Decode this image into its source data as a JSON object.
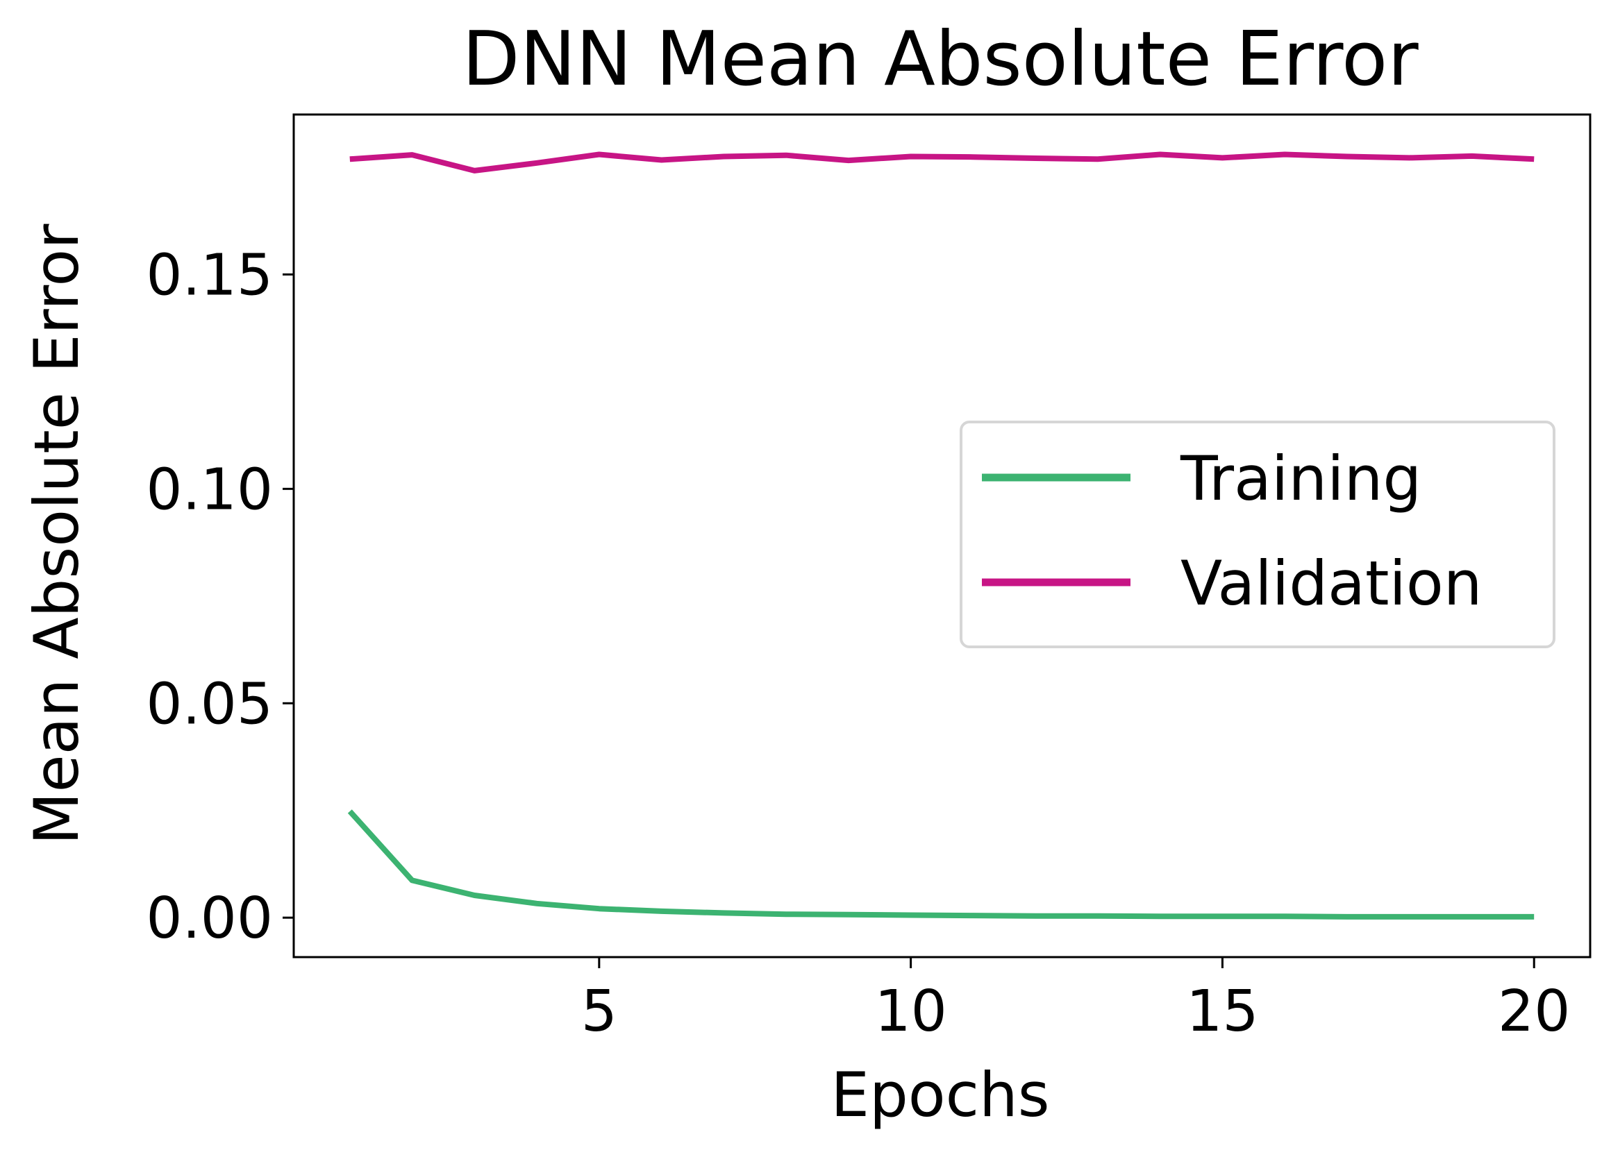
{
  "chart_data": {
    "type": "line",
    "title": "DNN Mean Absolute Error",
    "xlabel": "Epochs",
    "ylabel": "Mean Absolute Error",
    "xlim": [
      0.1,
      20.9
    ],
    "ylim": [
      -0.0092,
      0.1873
    ],
    "xticks": [
      5,
      10,
      15,
      20
    ],
    "xtick_labels": [
      "5",
      "10",
      "15",
      "20"
    ],
    "yticks": [
      0.0,
      0.05,
      0.1,
      0.15
    ],
    "ytick_labels": [
      "0.00",
      "0.05",
      "0.10",
      "0.15"
    ],
    "grid": false,
    "legend_position": "center-right",
    "x": [
      1,
      2,
      3,
      4,
      5,
      6,
      7,
      8,
      9,
      10,
      11,
      12,
      13,
      14,
      15,
      16,
      17,
      18,
      19,
      20
    ],
    "series": [
      {
        "name": "Training",
        "color": "#3cb371",
        "values": [
          0.0248,
          0.0087,
          0.0052,
          0.0033,
          0.0021,
          0.0015,
          0.0011,
          0.0008,
          0.0007,
          0.0006,
          0.0005,
          0.0004,
          0.0004,
          0.0003,
          0.0003,
          0.0003,
          0.0002,
          0.0002,
          0.0002,
          0.0002
        ]
      },
      {
        "name": "Validation",
        "color": "#c71585",
        "values": [
          0.1769,
          0.1779,
          0.1742,
          0.176,
          0.178,
          0.1767,
          0.1775,
          0.1778,
          0.1766,
          0.1775,
          0.1774,
          0.1771,
          0.1769,
          0.178,
          0.1772,
          0.178,
          0.1775,
          0.1772,
          0.1776,
          0.1769
        ]
      }
    ]
  }
}
